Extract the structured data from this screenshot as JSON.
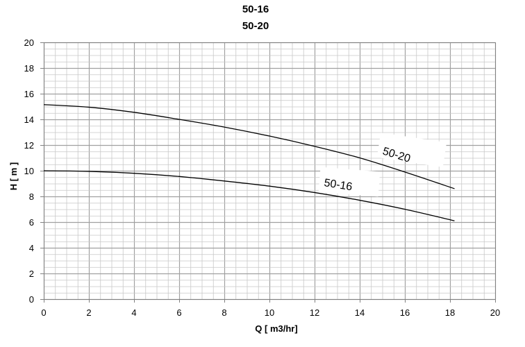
{
  "chart_data": {
    "type": "line",
    "title": "50-16",
    "subtitle": "50-20",
    "xlabel": "Q [ m3/hr]",
    "ylabel": "H [ m ]",
    "xlim": [
      0,
      20
    ],
    "ylim": [
      0,
      20
    ],
    "x_ticks": [
      "0",
      "2",
      "4",
      "6",
      "8",
      "10",
      "12",
      "14",
      "16",
      "18",
      "20"
    ],
    "y_ticks": [
      "0",
      "2",
      "4",
      "6",
      "8",
      "10",
      "12",
      "14",
      "16",
      "18",
      "20"
    ],
    "grid": true,
    "series": [
      {
        "name": "50-20",
        "x": [
          0,
          2,
          4,
          6,
          8,
          10,
          12,
          14,
          16,
          18.2
        ],
        "y": [
          15.15,
          14.95,
          14.55,
          14.0,
          13.4,
          12.7,
          11.9,
          11.0,
          9.9,
          8.6
        ]
      },
      {
        "name": "50-16",
        "x": [
          0,
          2,
          4,
          6,
          8,
          10,
          12,
          14,
          16,
          18.2
        ],
        "y": [
          10.0,
          9.95,
          9.8,
          9.55,
          9.2,
          8.8,
          8.3,
          7.7,
          7.0,
          6.1
        ]
      }
    ],
    "colors": {
      "curve": "#000000",
      "grid_major": "#a0a0a0",
      "grid_minor": "#c8c8c8"
    }
  }
}
